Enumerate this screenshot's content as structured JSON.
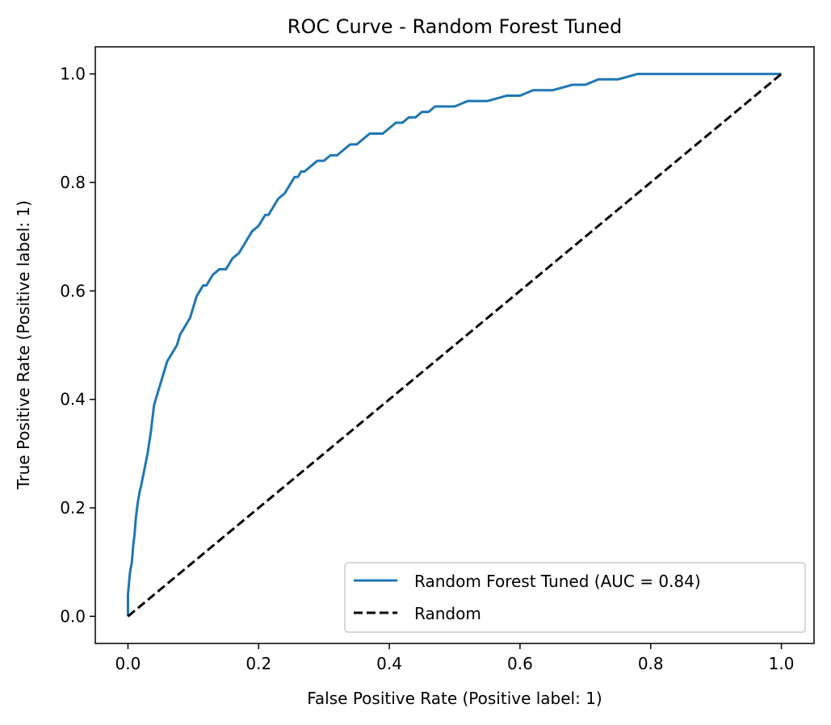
{
  "chart_data": {
    "type": "line",
    "title": "ROC Curve - Random Forest Tuned",
    "xlabel": "False Positive Rate (Positive label: 1)",
    "ylabel": "True Positive Rate (Positive label: 1)",
    "xlim": [
      -0.05,
      1.05
    ],
    "ylim": [
      -0.05,
      1.05
    ],
    "xticks": [
      0.0,
      0.2,
      0.4,
      0.6,
      0.8,
      1.0
    ],
    "yticks": [
      0.0,
      0.2,
      0.4,
      0.6,
      0.8,
      1.0
    ],
    "xtick_labels": [
      "0.0",
      "0.2",
      "0.4",
      "0.6",
      "0.8",
      "1.0"
    ],
    "ytick_labels": [
      "0.0",
      "0.2",
      "0.4",
      "0.6",
      "0.8",
      "1.0"
    ],
    "grid": false,
    "legend_position": "bottom-right",
    "series": [
      {
        "name": "Random Forest Tuned (AUC = 0.84)",
        "color": "#1f77b4",
        "style": "solid",
        "x": [
          0.0,
          0.0,
          0.003,
          0.006,
          0.008,
          0.01,
          0.012,
          0.015,
          0.018,
          0.02,
          0.025,
          0.03,
          0.035,
          0.038,
          0.04,
          0.045,
          0.05,
          0.055,
          0.06,
          0.065,
          0.07,
          0.075,
          0.08,
          0.085,
          0.09,
          0.095,
          0.1,
          0.105,
          0.11,
          0.115,
          0.12,
          0.125,
          0.13,
          0.14,
          0.15,
          0.16,
          0.17,
          0.18,
          0.19,
          0.2,
          0.205,
          0.21,
          0.215,
          0.22,
          0.23,
          0.24,
          0.25,
          0.255,
          0.26,
          0.265,
          0.27,
          0.28,
          0.29,
          0.3,
          0.31,
          0.32,
          0.33,
          0.34,
          0.35,
          0.36,
          0.37,
          0.38,
          0.39,
          0.4,
          0.41,
          0.42,
          0.43,
          0.44,
          0.45,
          0.46,
          0.47,
          0.48,
          0.5,
          0.52,
          0.55,
          0.58,
          0.6,
          0.62,
          0.65,
          0.68,
          0.7,
          0.72,
          0.75,
          0.78,
          0.8,
          0.85,
          0.9,
          0.92,
          0.95,
          0.98,
          1.0
        ],
        "y": [
          0.0,
          0.04,
          0.08,
          0.1,
          0.13,
          0.15,
          0.18,
          0.21,
          0.23,
          0.24,
          0.27,
          0.3,
          0.34,
          0.37,
          0.39,
          0.41,
          0.43,
          0.45,
          0.47,
          0.48,
          0.49,
          0.5,
          0.52,
          0.53,
          0.54,
          0.55,
          0.57,
          0.59,
          0.6,
          0.61,
          0.61,
          0.62,
          0.63,
          0.64,
          0.64,
          0.66,
          0.67,
          0.69,
          0.71,
          0.72,
          0.73,
          0.74,
          0.74,
          0.75,
          0.77,
          0.78,
          0.8,
          0.81,
          0.81,
          0.82,
          0.82,
          0.83,
          0.84,
          0.84,
          0.85,
          0.85,
          0.86,
          0.87,
          0.87,
          0.88,
          0.89,
          0.89,
          0.89,
          0.9,
          0.91,
          0.91,
          0.92,
          0.92,
          0.93,
          0.93,
          0.94,
          0.94,
          0.94,
          0.95,
          0.95,
          0.96,
          0.96,
          0.97,
          0.97,
          0.98,
          0.98,
          0.99,
          0.99,
          1.0,
          1.0,
          1.0,
          1.0,
          1.0,
          1.0,
          1.0,
          1.0
        ]
      },
      {
        "name": "Random",
        "color": "#000000",
        "style": "dashed",
        "x": [
          0.0,
          1.0
        ],
        "y": [
          0.0,
          1.0
        ]
      }
    ]
  }
}
